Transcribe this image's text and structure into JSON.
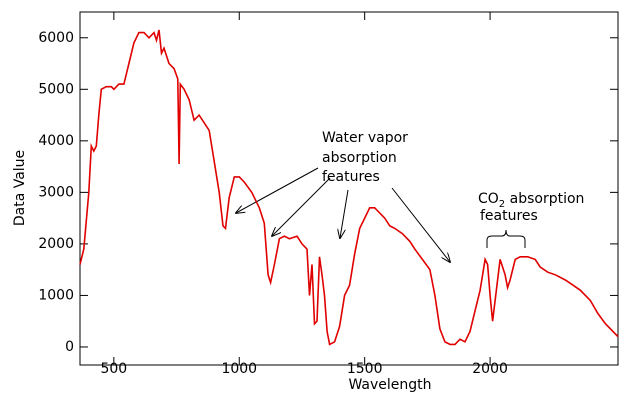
{
  "chart_data": {
    "type": "line",
    "x_label": "Wavelength",
    "y_label": "Data Value",
    "annotations": {
      "water": [
        "Water vapor",
        "absorption",
        "features"
      ],
      "co2": [
        "CO",
        "2",
        " absorption",
        "features"
      ]
    },
    "xlim": [
      365,
      2510
    ],
    "ylim": [
      -350,
      6500
    ],
    "xticks": [
      500,
      1000,
      1500,
      2000
    ],
    "yticks": [
      0,
      1000,
      2000,
      3000,
      4000,
      5000,
      6000
    ],
    "series": [
      {
        "color": "#e00000",
        "x": [
          365,
          380,
          400,
          410,
          420,
          430,
          440,
          450,
          470,
          490,
          500,
          520,
          540,
          560,
          580,
          600,
          620,
          640,
          660,
          670,
          680,
          690,
          700,
          720,
          740,
          755,
          760,
          765,
          780,
          800,
          820,
          840,
          860,
          880,
          900,
          920,
          935,
          945,
          960,
          980,
          1000,
          1020,
          1050,
          1080,
          1100,
          1115,
          1125,
          1140,
          1160,
          1180,
          1200,
          1230,
          1250,
          1270,
          1280,
          1290,
          1300,
          1310,
          1320,
          1330,
          1340,
          1350,
          1360,
          1380,
          1400,
          1420,
          1440,
          1460,
          1480,
          1500,
          1520,
          1540,
          1560,
          1580,
          1600,
          1620,
          1650,
          1680,
          1700,
          1730,
          1760,
          1780,
          1800,
          1820,
          1840,
          1860,
          1880,
          1900,
          1920,
          1940,
          1960,
          1980,
          1990,
          2000,
          2010,
          2030,
          2040,
          2060,
          2070,
          2080,
          2100,
          2120,
          2150,
          2180,
          2200,
          2230,
          2260,
          2300,
          2330,
          2360,
          2400,
          2430,
          2460,
          2480,
          2500,
          2510
        ],
        "values": [
          1600,
          1900,
          3000,
          3900,
          3800,
          3900,
          4500,
          5000,
          5050,
          5050,
          5000,
          5100,
          5100,
          5500,
          5900,
          6100,
          6100,
          6000,
          6100,
          5950,
          6150,
          5700,
          5800,
          5500,
          5400,
          5200,
          3550,
          5100,
          5000,
          4800,
          4400,
          4500,
          4350,
          4200,
          3600,
          3000,
          2350,
          2300,
          2900,
          3300,
          3300,
          3200,
          3000,
          2700,
          2400,
          1400,
          1250,
          1600,
          2100,
          2150,
          2100,
          2150,
          2000,
          1900,
          1000,
          1600,
          450,
          500,
          1750,
          1400,
          1000,
          300,
          50,
          100,
          400,
          1000,
          1200,
          1800,
          2300,
          2500,
          2700,
          2700,
          2600,
          2500,
          2350,
          2300,
          2200,
          2050,
          1900,
          1700,
          1500,
          1000,
          350,
          100,
          50,
          50,
          150,
          100,
          300,
          700,
          1100,
          1700,
          1600,
          1000,
          500,
          1300,
          1700,
          1400,
          1150,
          1300,
          1700,
          1750,
          1750,
          1700,
          1550,
          1450,
          1400,
          1300,
          1200,
          1100,
          900,
          650,
          450,
          350,
          250,
          200
        ]
      }
    ]
  }
}
